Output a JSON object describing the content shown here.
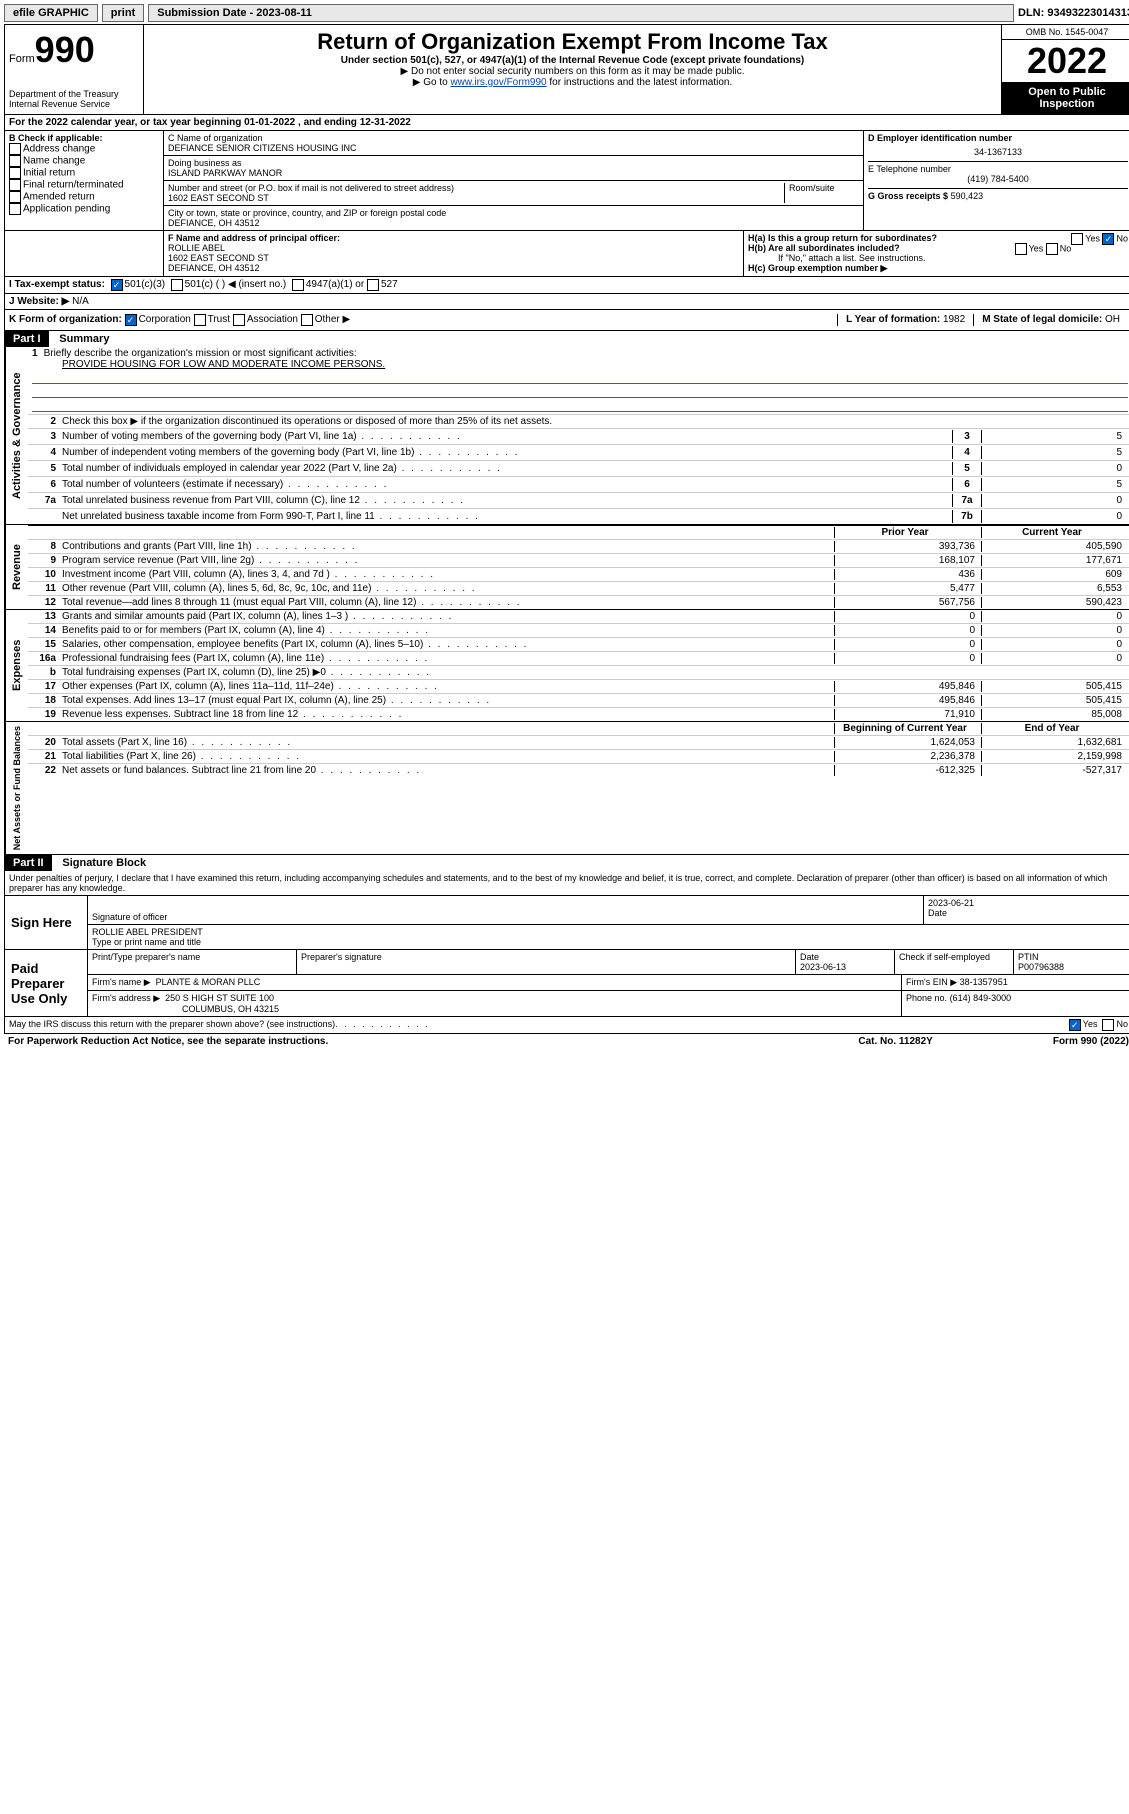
{
  "topbar": {
    "efile": "efile GRAPHIC",
    "print": "print",
    "sub_label": "Submission Date - 2023-08-11",
    "dln": "DLN: 93493223014313"
  },
  "header": {
    "form_word": "Form",
    "form_num": "990",
    "dept": "Department of the Treasury Internal Revenue Service",
    "title": "Return of Organization Exempt From Income Tax",
    "subtitle": "Under section 501(c), 527, or 4947(a)(1) of the Internal Revenue Code (except private foundations)",
    "instr1": "▶ Do not enter social security numbers on this form as it may be made public.",
    "instr2_pre": "▶ Go to ",
    "instr2_link": "www.irs.gov/Form990",
    "instr2_post": " for instructions and the latest information.",
    "omb": "OMB No. 1545-0047",
    "year": "2022",
    "open": "Open to Public Inspection"
  },
  "period": "For the 2022 calendar year, or tax year beginning 01-01-2022   , and ending 12-31-2022",
  "boxB": {
    "label": "B Check if applicable:",
    "items": [
      "Address change",
      "Name change",
      "Initial return",
      "Final return/terminated",
      "Amended return",
      "Application pending"
    ]
  },
  "boxC": {
    "name_label": "C Name of organization",
    "name": "DEFIANCE SENIOR CITIZENS HOUSING INC",
    "dba_label": "Doing business as",
    "dba": "ISLAND PARKWAY MANOR",
    "street_label": "Number and street (or P.O. box if mail is not delivered to street address)",
    "room_label": "Room/suite",
    "street": "1602 EAST SECOND ST",
    "city_label": "City or town, state or province, country, and ZIP or foreign postal code",
    "city": "DEFIANCE, OH  43512"
  },
  "boxD": {
    "label": "D Employer identification number",
    "value": "34-1367133"
  },
  "boxE": {
    "label": "E Telephone number",
    "value": "(419) 784-5400"
  },
  "boxG": {
    "label": "G Gross receipts $",
    "value": "590,423"
  },
  "boxF": {
    "label": "F  Name and address of principal officer:",
    "name": "ROLLIE ABEL",
    "addr1": "1602 EAST SECOND ST",
    "addr2": "DEFIANCE, OH  43512"
  },
  "boxH": {
    "a": "H(a)  Is this a group return for subordinates?",
    "a_yes": "Yes",
    "a_no": "No",
    "b": "H(b)  Are all subordinates included?",
    "b_yes": "Yes",
    "b_no": "No",
    "b_note": "If \"No,\" attach a list. See instructions.",
    "c": "H(c)  Group exemption number ▶"
  },
  "lineI": {
    "label": "I   Tax-exempt status:",
    "opt1": "501(c)(3)",
    "opt2": "501(c) (  ) ◀ (insert no.)",
    "opt3": "4947(a)(1) or",
    "opt4": "527"
  },
  "lineJ": {
    "label": "J   Website: ▶",
    "value": "N/A"
  },
  "lineK": {
    "label": "K Form of organization:",
    "opts": [
      "Corporation",
      "Trust",
      "Association",
      "Other ▶"
    ]
  },
  "lineL": {
    "label": "L Year of formation:",
    "value": "1982"
  },
  "lineM": {
    "label": "M State of legal domicile:",
    "value": "OH"
  },
  "part1": {
    "header": "Part I",
    "title": "Summary",
    "mission_label": "Briefly describe the organization's mission or most significant activities:",
    "mission": "PROVIDE HOUSING FOR LOW AND MODERATE INCOME PERSONS.",
    "line2": "Check this box ▶        if the organization discontinued its operations or disposed of more than 25% of its net assets.",
    "governance_lines": [
      {
        "n": "3",
        "t": "Number of voting members of the governing body (Part VI, line 1a)",
        "box": "3",
        "v": "5"
      },
      {
        "n": "4",
        "t": "Number of independent voting members of the governing body (Part VI, line 1b)",
        "box": "4",
        "v": "5"
      },
      {
        "n": "5",
        "t": "Total number of individuals employed in calendar year 2022 (Part V, line 2a)",
        "box": "5",
        "v": "0"
      },
      {
        "n": "6",
        "t": "Total number of volunteers (estimate if necessary)",
        "box": "6",
        "v": "5"
      },
      {
        "n": "7a",
        "t": "Total unrelated business revenue from Part VIII, column (C), line 12",
        "box": "7a",
        "v": "0"
      },
      {
        "n": "",
        "t": "Net unrelated business taxable income from Form 990-T, Part I, line 11",
        "box": "7b",
        "v": "0"
      }
    ],
    "col_prior": "Prior Year",
    "col_current": "Current Year",
    "revenue_lines": [
      {
        "n": "8",
        "t": "Contributions and grants (Part VIII, line 1h)",
        "p": "393,736",
        "c": "405,590"
      },
      {
        "n": "9",
        "t": "Program service revenue (Part VIII, line 2g)",
        "p": "168,107",
        "c": "177,671"
      },
      {
        "n": "10",
        "t": "Investment income (Part VIII, column (A), lines 3, 4, and 7d )",
        "p": "436",
        "c": "609"
      },
      {
        "n": "11",
        "t": "Other revenue (Part VIII, column (A), lines 5, 6d, 8c, 9c, 10c, and 11e)",
        "p": "5,477",
        "c": "6,553"
      },
      {
        "n": "12",
        "t": "Total revenue—add lines 8 through 11 (must equal Part VIII, column (A), line 12)",
        "p": "567,756",
        "c": "590,423"
      }
    ],
    "expense_lines": [
      {
        "n": "13",
        "t": "Grants and similar amounts paid (Part IX, column (A), lines 1–3 )",
        "p": "0",
        "c": "0"
      },
      {
        "n": "14",
        "t": "Benefits paid to or for members (Part IX, column (A), line 4)",
        "p": "0",
        "c": "0"
      },
      {
        "n": "15",
        "t": "Salaries, other compensation, employee benefits (Part IX, column (A), lines 5–10)",
        "p": "0",
        "c": "0"
      },
      {
        "n": "16a",
        "t": "Professional fundraising fees (Part IX, column (A), line 11e)",
        "p": "0",
        "c": "0"
      },
      {
        "n": "b",
        "t": "Total fundraising expenses (Part IX, column (D), line 25) ▶0",
        "p": "",
        "c": "",
        "shaded": true
      },
      {
        "n": "17",
        "t": "Other expenses (Part IX, column (A), lines 11a–11d, 11f–24e)",
        "p": "495,846",
        "c": "505,415"
      },
      {
        "n": "18",
        "t": "Total expenses. Add lines 13–17 (must equal Part IX, column (A), line 25)",
        "p": "495,846",
        "c": "505,415"
      },
      {
        "n": "19",
        "t": "Revenue less expenses. Subtract line 18 from line 12",
        "p": "71,910",
        "c": "85,008"
      }
    ],
    "col_begin": "Beginning of Current Year",
    "col_end": "End of Year",
    "net_lines": [
      {
        "n": "20",
        "t": "Total assets (Part X, line 16)",
        "p": "1,624,053",
        "c": "1,632,681"
      },
      {
        "n": "21",
        "t": "Total liabilities (Part X, line 26)",
        "p": "2,236,378",
        "c": "2,159,998"
      },
      {
        "n": "22",
        "t": "Net assets or fund balances. Subtract line 21 from line 20",
        "p": "-612,325",
        "c": "-527,317"
      }
    ],
    "side_gov": "Activities & Governance",
    "side_rev": "Revenue",
    "side_exp": "Expenses",
    "side_net": "Net Assets or Fund Balances"
  },
  "part2": {
    "header": "Part II",
    "title": "Signature Block",
    "decl": "Under penalties of perjury, I declare that I have examined this return, including accompanying schedules and statements, and to the best of my knowledge and belief, it is true, correct, and complete. Declaration of preparer (other than officer) is based on all information of which preparer has any knowledge.",
    "sign_here": "Sign Here",
    "sig_officer": "Signature of officer",
    "sig_date": "2023-06-21",
    "date_label": "Date",
    "officer_name": "ROLLIE ABEL  PRESIDENT",
    "officer_name_label": "Type or print name and title",
    "paid": "Paid Preparer Use Only",
    "prep_name_label": "Print/Type preparer's name",
    "prep_sig_label": "Preparer's signature",
    "prep_date_label": "Date",
    "prep_date": "2023-06-13",
    "check_if": "Check         if self-employed",
    "ptin_label": "PTIN",
    "ptin": "P00796388",
    "firm_name_label": "Firm's name     ▶",
    "firm_name": "PLANTE & MORAN PLLC",
    "firm_ein_label": "Firm's EIN ▶",
    "firm_ein": "38-1357951",
    "firm_addr_label": "Firm's address ▶",
    "firm_addr": "250 S HIGH ST SUITE 100",
    "firm_city": "COLUMBUS, OH  43215",
    "phone_label": "Phone no.",
    "phone": "(614) 849-3000",
    "may_irs": "May the IRS discuss this return with the preparer shown above? (see instructions)",
    "yes": "Yes",
    "no": "No"
  },
  "footer": {
    "left": "For Paperwork Reduction Act Notice, see the separate instructions.",
    "mid": "Cat. No. 11282Y",
    "right": "Form 990 (2022)"
  }
}
